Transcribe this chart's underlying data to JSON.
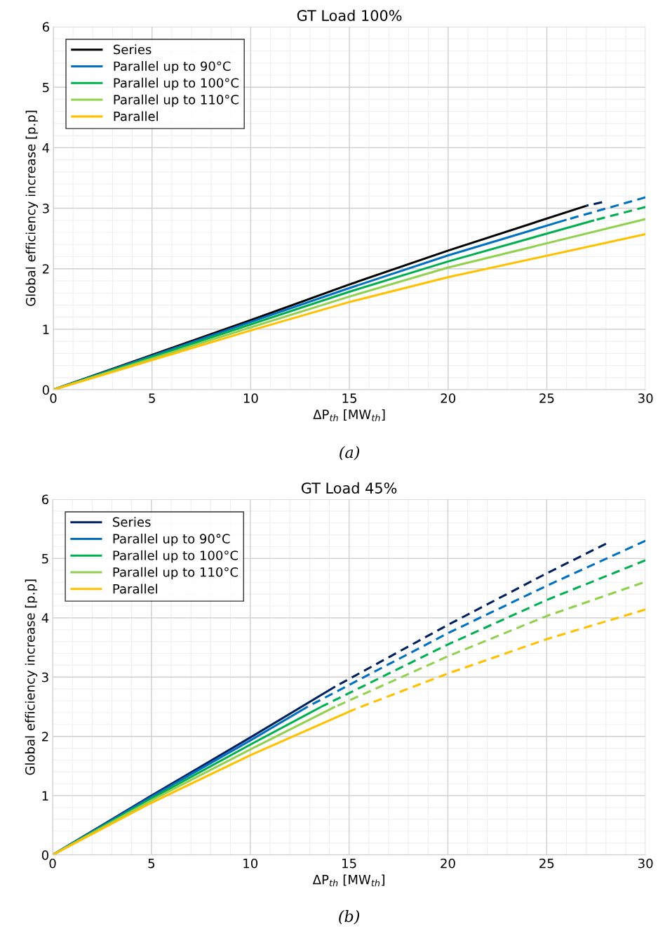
{
  "chart_data": [
    {
      "type": "line",
      "title": "GT Load 100%",
      "xlabel": "ΔP$_{th}$ [MW$_{th}$]",
      "ylabel": "Global efficiency increase [p.p]",
      "annotations": [
        "(a)"
      ],
      "xlim": [
        0,
        30
      ],
      "xticks": [
        0,
        5,
        10,
        15,
        20,
        25,
        30
      ],
      "ylim": [
        0,
        6
      ],
      "yticks": [
        0,
        1,
        2,
        3,
        4,
        5,
        6
      ],
      "grid": true,
      "legend": "top left",
      "series": [
        {
          "name": "Series",
          "color": "#000000",
          "x": [
            0,
            10,
            15,
            20,
            27.0
          ],
          "values": [
            0,
            1.15,
            1.74,
            2.3,
            3.04
          ]
        },
        {
          "name": "Parallel up to 90°C",
          "color": "#0070c0",
          "x": [
            0,
            10,
            15,
            20,
            26.0
          ],
          "values": [
            0,
            1.12,
            1.68,
            2.22,
            2.81
          ]
        },
        {
          "name": "Parallel up to 100°C",
          "color": "#00b050",
          "x": [
            0,
            10,
            15,
            20,
            27.4
          ],
          "values": [
            0,
            1.08,
            1.62,
            2.12,
            2.8
          ]
        },
        {
          "name": "Parallel up to 110°C",
          "color": "#92d050",
          "x": [
            0,
            10,
            15,
            20,
            29.75
          ],
          "values": [
            0,
            1.03,
            1.54,
            2.02,
            2.8
          ]
        },
        {
          "name": "Parallel",
          "color": "#ffc000",
          "x": [
            0,
            10,
            15,
            20,
            30
          ],
          "values": [
            0,
            0.98,
            1.45,
            1.86,
            2.57
          ]
        },
        {
          "color": "#002060",
          "line_style": "dashed",
          "x": [
            27.0,
            27.8
          ],
          "values": [
            3.04,
            3.1
          ]
        },
        {
          "color": "#0070c0",
          "line_style": "dashed",
          "x": [
            26.0,
            30
          ],
          "values": [
            2.81,
            3.18
          ]
        },
        {
          "color": "#00b050",
          "line_style": "dashed",
          "x": [
            27.4,
            30
          ],
          "values": [
            2.8,
            3.02
          ]
        },
        {
          "color": "#92d050",
          "line_style": "dashed",
          "x": [
            29.75,
            30
          ],
          "values": [
            2.8,
            2.82
          ]
        }
      ]
    },
    {
      "type": "line",
      "title": "GT Load 45%",
      "xlabel": "ΔP$_{th}$ [MW$_{th}$]",
      "ylabel": "Global efficiency increase [p.p]",
      "annotations": [
        "(b)"
      ],
      "xlim": [
        0,
        30
      ],
      "xticks": [
        0,
        5,
        10,
        15,
        20,
        25,
        30
      ],
      "ylim": [
        0,
        6
      ],
      "yticks": [
        0,
        1,
        2,
        3,
        4,
        5,
        6
      ],
      "grid": true,
      "legend": "top left",
      "series": [
        {
          "name": "Series",
          "color": "#002060",
          "x": [
            0,
            5,
            10,
            14.3
          ],
          "values": [
            0,
            1.0,
            1.98,
            2.84
          ]
        },
        {
          "name": "Parallel up to 90°C",
          "color": "#0070c0",
          "x": [
            0,
            5,
            10,
            12.9
          ],
          "values": [
            0,
            0.98,
            1.93,
            2.5
          ]
        },
        {
          "name": "Parallel up to 100°C",
          "color": "#00b050",
          "x": [
            0,
            5,
            10,
            13.6
          ],
          "values": [
            0,
            0.95,
            1.86,
            2.5
          ]
        },
        {
          "name": "Parallel up to 110°C",
          "color": "#92d050",
          "x": [
            0,
            5,
            10,
            14.3
          ],
          "values": [
            0,
            0.92,
            1.78,
            2.5
          ]
        },
        {
          "name": "Parallel",
          "color": "#ffc000",
          "x": [
            0,
            5,
            10,
            15.3
          ],
          "values": [
            0,
            0.88,
            1.68,
            2.46
          ]
        },
        {
          "color": "#002060",
          "line_style": "dashed",
          "x": [
            14.3,
            20,
            25,
            28.0
          ],
          "values": [
            2.84,
            3.88,
            4.75,
            5.25
          ]
        },
        {
          "color": "#0070c0",
          "line_style": "dashed",
          "x": [
            12.9,
            20,
            25,
            30
          ],
          "values": [
            2.5,
            3.74,
            4.54,
            5.3
          ]
        },
        {
          "color": "#00b050",
          "line_style": "dashed",
          "x": [
            13.6,
            20,
            25,
            30
          ],
          "values": [
            2.5,
            3.55,
            4.3,
            4.97
          ]
        },
        {
          "color": "#92d050",
          "line_style": "dashed",
          "x": [
            14.3,
            20,
            25,
            29.85
          ],
          "values": [
            2.5,
            3.35,
            4.03,
            4.59
          ]
        },
        {
          "color": "#ffc000",
          "line_style": "dashed",
          "x": [
            15.3,
            20,
            25,
            30
          ],
          "values": [
            2.46,
            3.06,
            3.64,
            4.14
          ]
        }
      ]
    }
  ]
}
